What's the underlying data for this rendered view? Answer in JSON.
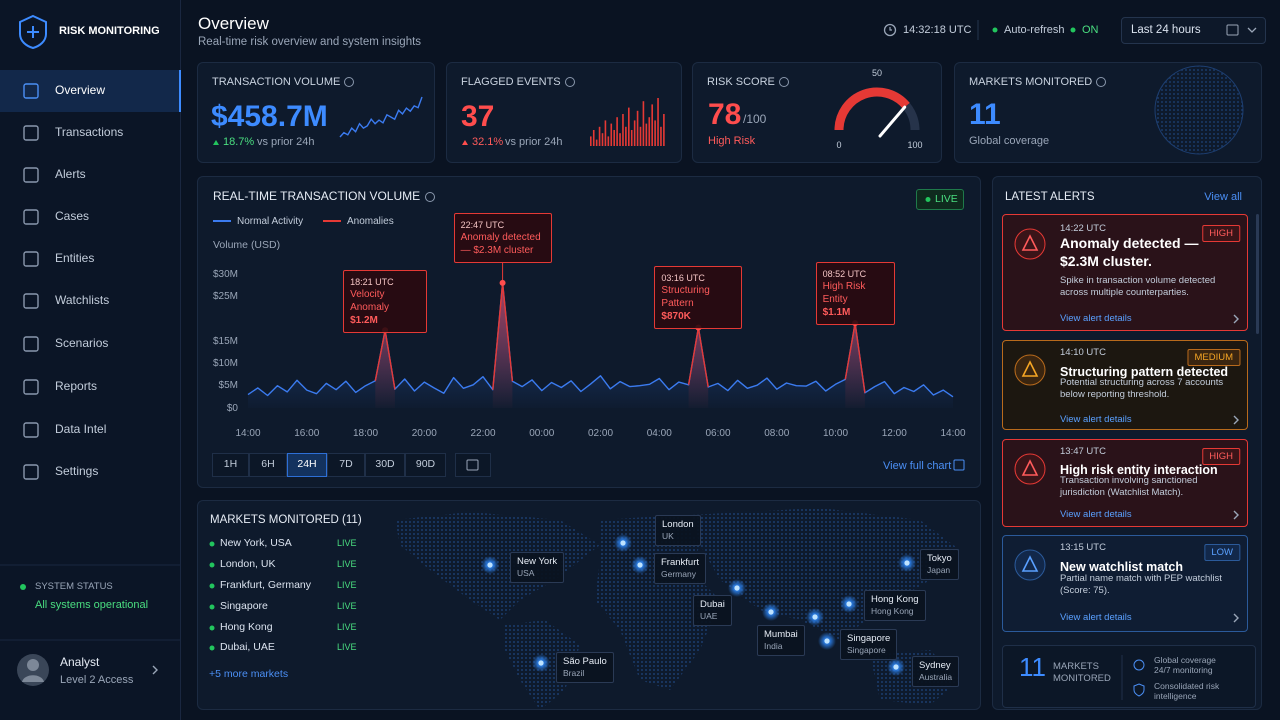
{
  "sidebar": {
    "brand": "RISK MONITORING",
    "nav": [
      "Overview",
      "Transactions",
      "Alerts",
      "Cases",
      "Entities",
      "Watchlists",
      "Scenarios",
      "Reports",
      "Data Intel",
      "Settings"
    ],
    "nav_active": 0,
    "status_label": "SYSTEM STATUS",
    "status_text": "All systems operational",
    "user_name": "Analyst",
    "user_role": "Level 2 Access"
  },
  "header": {
    "title": "Overview",
    "subtitle": "Real-time risk overview and system insights",
    "time": "14:32:18 UTC",
    "auto_refresh": "Auto-refresh",
    "auto_refresh_state": "ON",
    "range": "Last 24 hours"
  },
  "kpis": [
    {
      "label": "TRANSACTION VOLUME",
      "value": "$458.7M",
      "change": "18.7%",
      "change_note": "vs prior 24h",
      "spark": [
        3,
        4,
        3.5,
        5,
        4.2,
        6,
        5,
        5.5,
        7,
        6,
        6.8,
        6.2,
        8,
        7.5,
        7,
        9,
        8.2,
        9.5,
        8.8,
        10,
        9.6,
        12
      ]
    },
    {
      "label": "FLAGGED EVENTS",
      "value": 37,
      "change": "32.1%",
      "change_note": "vs prior 24h",
      "bars": [
        3,
        5,
        2,
        6,
        4,
        8,
        3,
        7,
        5,
        9,
        4,
        10,
        6,
        12,
        5,
        8,
        11,
        6,
        14,
        7,
        9,
        13,
        8,
        15,
        6,
        10
      ]
    },
    {
      "label": "RISK SCORE",
      "value": 78,
      "scale": "/100",
      "level": "High Risk",
      "gauge_ticks": [
        0,
        50,
        100
      ]
    },
    {
      "label": "MARKETS MONITORED",
      "value": 11,
      "note": "Global coverage"
    }
  ],
  "chart_data": {
    "type": "line",
    "title": "REAL-TIME TRANSACTION VOLUME",
    "badge": "LIVE",
    "y_label": "Volume (USD)",
    "categories": [
      "14:00",
      null,
      null,
      null,
      null,
      null,
      "16:00",
      null,
      null,
      null,
      null,
      null,
      "18:00",
      null,
      null,
      null,
      null,
      null,
      "20:00",
      null,
      null,
      null,
      null,
      null,
      "22:00",
      null,
      null,
      null,
      null,
      null,
      "00:00",
      null,
      null,
      null,
      null,
      null,
      "02:00",
      null,
      null,
      null,
      null,
      null,
      "04:00",
      null,
      null,
      null,
      null,
      null,
      "06:00",
      null,
      null,
      null,
      null,
      null,
      "08:00",
      null,
      null,
      null,
      null,
      null,
      "10:00",
      null,
      null,
      null,
      null,
      null,
      "12:00",
      null,
      null,
      null,
      null,
      null,
      "14:00"
    ],
    "series": [
      {
        "name": "Normal Activity",
        "color": "#3b7bf0",
        "values": [
          3,
          4.5,
          2.8,
          5,
          3.6,
          6.2,
          4,
          3.2,
          5.5,
          4.1,
          6,
          3.5,
          5,
          6.1,
          17.4,
          4.2,
          6.5,
          3.8,
          5.8,
          4.5,
          3.3,
          6.8,
          4.4,
          5.2,
          7,
          4.1,
          28,
          6,
          4.8,
          6.3,
          3.9,
          5.7,
          4.6,
          6.1,
          3.7,
          5.4,
          7.2,
          4.3,
          5.9,
          4.8,
          5,
          5.3,
          6.6,
          4.1,
          5.8,
          5.2,
          18,
          4.7,
          5.5,
          3.9,
          6.2,
          4.4,
          5.1,
          6.7,
          4.2,
          5.6,
          5,
          4.9,
          6,
          3.8,
          5.3,
          6.4,
          19,
          3.4,
          4.8,
          5.9,
          3.2,
          4.6,
          3.7,
          5.2,
          2.9,
          4,
          2.5
        ]
      },
      {
        "name": "Anomalies",
        "color": "#e53935",
        "values": [
          null,
          null,
          null,
          null,
          null,
          null,
          null,
          null,
          null,
          null,
          null,
          null,
          null,
          6.1,
          17.4,
          4.2,
          null,
          null,
          null,
          null,
          null,
          null,
          null,
          null,
          null,
          4.1,
          28,
          6,
          null,
          null,
          null,
          null,
          null,
          null,
          null,
          null,
          null,
          null,
          null,
          null,
          null,
          null,
          null,
          null,
          null,
          5.2,
          18,
          4.7,
          null,
          null,
          null,
          null,
          null,
          null,
          null,
          null,
          null,
          null,
          null,
          null,
          null,
          6.4,
          19,
          3.4,
          null,
          null,
          null,
          null,
          null,
          null,
          null,
          null,
          null
        ]
      }
    ],
    "ylim": [
      0,
      30
    ],
    "yticks": [
      {
        "value": 0,
        "label": "$0"
      },
      {
        "value": 5,
        "label": "$5M"
      },
      {
        "value": 10,
        "label": "$10M"
      },
      {
        "value": 15,
        "label": "$15M"
      },
      {
        "value": 25,
        "label": "$25M"
      },
      {
        "value": 30,
        "label": "$30M"
      }
    ],
    "grid": false,
    "annotations": [
      {
        "time": "18:21 UTC",
        "title": "Velocity Anomaly",
        "amount": "$1.2M"
      },
      {
        "time": "22:47 UTC",
        "title": "Anomaly detected — $2.3M cluster"
      },
      {
        "time": "03:16 UTC",
        "title": "Structuring Pattern",
        "amount": "$870K"
      },
      {
        "time": "08:52 UTC",
        "title": "High Risk Entity",
        "amount": "$1.1M"
      }
    ],
    "ranges": [
      "1H",
      "6H",
      "24H",
      "7D",
      "30D",
      "90D"
    ],
    "range_active": 2,
    "link": "View full chart"
  },
  "markets": {
    "title": "MARKETS MONITORED (11)",
    "list": [
      {
        "name": "New York, USA",
        "status": "LIVE"
      },
      {
        "name": "London, UK",
        "status": "LIVE"
      },
      {
        "name": "Frankfurt, Germany",
        "status": "LIVE"
      },
      {
        "name": "Singapore",
        "status": "LIVE"
      },
      {
        "name": "Hong Kong",
        "status": "LIVE"
      },
      {
        "name": "Dubai, UAE",
        "status": "LIVE"
      }
    ],
    "more": "+5 more markets",
    "map_labels": [
      {
        "city": "London",
        "country": "UK"
      },
      {
        "city": "New York",
        "country": "USA"
      },
      {
        "city": "Frankfurt",
        "country": "Germany"
      },
      {
        "city": "Dubai",
        "country": "UAE"
      },
      {
        "city": "Tokyo",
        "country": "Japan"
      },
      {
        "city": "Hong Kong",
        "country": "Hong Kong"
      },
      {
        "city": "Mumbai",
        "country": "India"
      },
      {
        "city": "Singapore",
        "country": "Singapore"
      },
      {
        "city": "São Paulo",
        "country": "Brazil"
      },
      {
        "city": "Sydney",
        "country": "Australia"
      }
    ]
  },
  "alerts": {
    "title": "LATEST ALERTS",
    "view_all": "View all",
    "items": [
      {
        "time": "14:22 UTC",
        "severity": "HIGH",
        "title": "Anomaly detected — $2.3M cluster.",
        "description": "Spike in transaction volume detected across multiple counterparties.",
        "link": "View alert details"
      },
      {
        "time": "14:10 UTC",
        "severity": "MEDIUM",
        "title": "Structuring pattern detected",
        "description": "Potential structuring across 7 accounts below reporting threshold.",
        "link": "View alert details"
      },
      {
        "time": "13:47 UTC",
        "severity": "HIGH",
        "title": "High risk entity interaction",
        "description": "Transaction involving sanctioned jurisdiction (Watchlist Match).",
        "link": "View alert details"
      },
      {
        "time": "13:15 UTC",
        "severity": "LOW",
        "title": "New watchlist match",
        "description": "Partial name match with PEP watchlist (Score: 75).",
        "link": "View alert details"
      }
    ]
  },
  "summary": {
    "value": 11,
    "label": "MARKETS MONITORED",
    "coverage": "Global coverage 24/7 monitoring",
    "intel": "Consolidated risk intelligence"
  }
}
